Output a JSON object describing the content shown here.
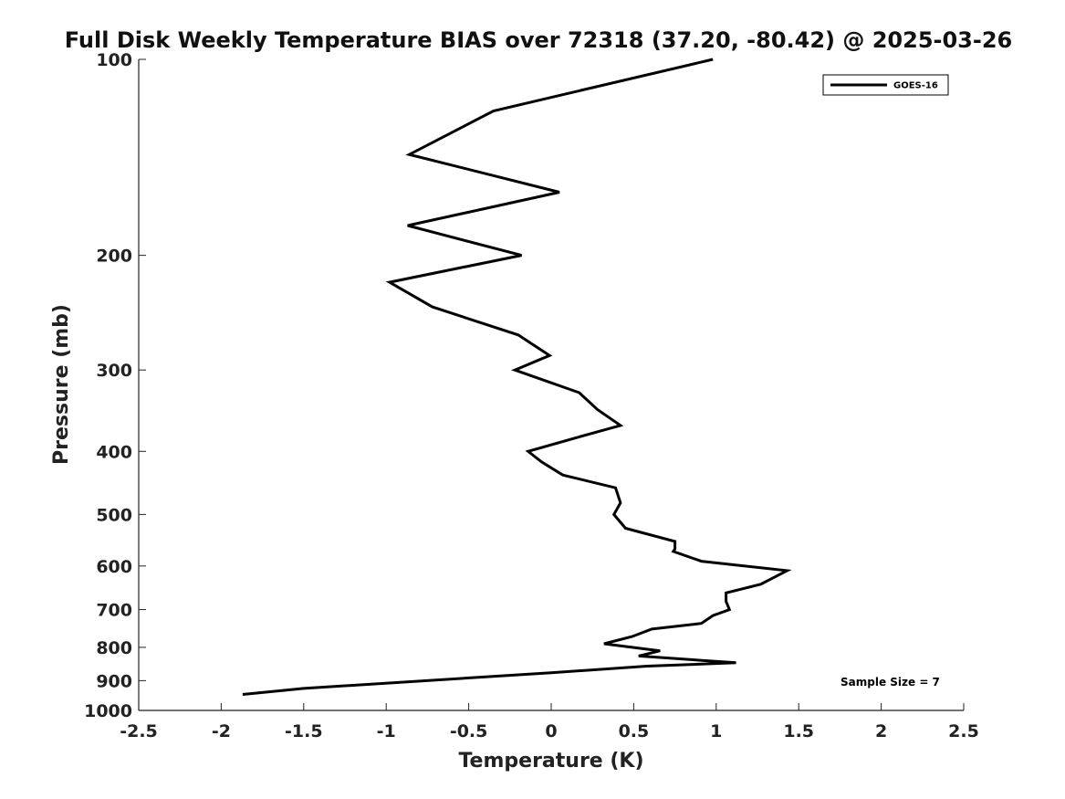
{
  "chart_data": {
    "type": "line",
    "title": "Full Disk Weekly Temperature BIAS over 72318 (37.20, -80.42) @ 2025-03-26",
    "xlabel": "Temperature (K)",
    "ylabel": "Pressure (mb)",
    "xlim": [
      -2.5,
      2.5
    ],
    "ylim": [
      1000,
      100
    ],
    "yscale": "log",
    "grid": false,
    "legend_position": "top-right",
    "x_ticks": [
      -2.5,
      -2,
      -1.5,
      -1,
      -0.5,
      0,
      0.5,
      1,
      1.5,
      2,
      2.5
    ],
    "x_tick_labels": [
      "-2.5",
      "-2",
      "-1.5",
      "-1",
      "-0.5",
      "0",
      "0.5",
      "1",
      "1.5",
      "2",
      "2.5"
    ],
    "y_ticks": [
      100,
      200,
      300,
      400,
      500,
      600,
      700,
      800,
      900,
      1000
    ],
    "y_tick_labels": [
      "100",
      "200",
      "300",
      "400",
      "500",
      "600",
      "700",
      "800",
      "900",
      "1000"
    ],
    "series": [
      {
        "name": "GOES-16",
        "color": "#000000",
        "temperature": [
          0.98,
          -0.35,
          -0.86,
          0.05,
          -0.87,
          -0.18,
          -0.98,
          -0.72,
          -0.2,
          -0.01,
          -0.22,
          0.17,
          0.28,
          0.42,
          0.17,
          -0.14,
          -0.06,
          0.07,
          0.39,
          0.42,
          0.38,
          0.45,
          0.75,
          0.75,
          0.74,
          0.91,
          1.43,
          1.27,
          1.06,
          1.06,
          1.08,
          0.98,
          0.91,
          0.61,
          0.49,
          0.32,
          0.66,
          0.53,
          1.12,
          0.58,
          0.0,
          -0.6,
          -1.5,
          -1.87
        ],
        "pressure": [
          100,
          120,
          140,
          160,
          180,
          200,
          220,
          240,
          265,
          285,
          300,
          325,
          345,
          365,
          380,
          400,
          415,
          435,
          455,
          480,
          500,
          525,
          550,
          565,
          570,
          590,
          610,
          640,
          660,
          680,
          700,
          715,
          735,
          750,
          770,
          790,
          810,
          825,
          845,
          855,
          875,
          895,
          925,
          945
        ]
      }
    ],
    "annotations": [
      "Sample Size = 7"
    ]
  }
}
